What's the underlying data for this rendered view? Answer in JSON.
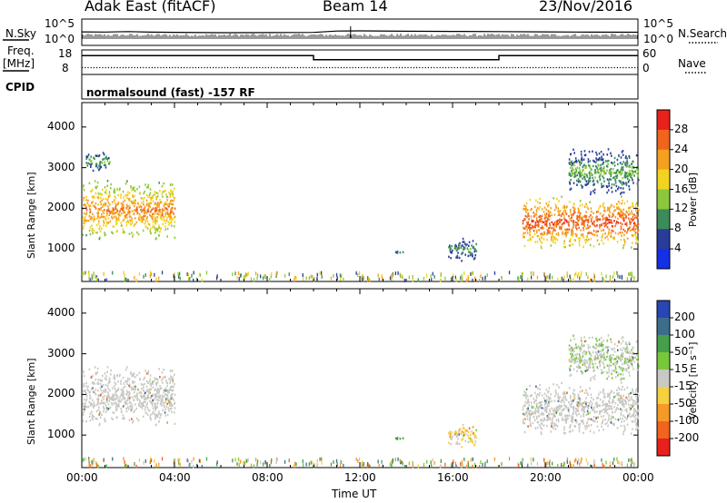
{
  "header": {
    "site": "Adak East (fitACF)",
    "beam": "Beam 14",
    "date": "23/Nov/2016"
  },
  "left_labels": {
    "nsky": "N.Sky",
    "freq": "Freq.",
    "mhz": "[MHz]",
    "cpid": "CPID"
  },
  "right_labels": {
    "nsearch": "N.Search",
    "nave": "Nave"
  },
  "strip_ticks": {
    "noise_left_top": "10^5",
    "noise_left_bottom": "10^0",
    "noise_right_top": "10^5",
    "noise_right_bottom": "10^0",
    "freq_top": "18",
    "freq_bottom": "8",
    "nave_top": "60",
    "nave_bottom": "0"
  },
  "cpid_text": "normalsound (fast) -157 RF",
  "power_colorbar": {
    "label": "Power [dB]",
    "ticks": [
      "28",
      "24",
      "20",
      "16",
      "12",
      "8",
      "4"
    ],
    "colors": [
      "#e8211c",
      "#f0641e",
      "#f5a020",
      "#f2d31f",
      "#8cc83c",
      "#3c8c5a",
      "#2a3c9a",
      "#1430e6"
    ]
  },
  "velocity_colorbar": {
    "label": "Velocity [m s⁻¹]",
    "ticks": [
      "200",
      "100",
      "50",
      "15",
      "-15",
      "-50",
      "-100",
      "-200"
    ],
    "colors": [
      "#2846b4",
      "#3c6e8c",
      "#46a04a",
      "#78c83c",
      "#c8c8c4",
      "#f5d040",
      "#f59a28",
      "#f0641e",
      "#e8211c"
    ]
  },
  "chart_data": [
    {
      "type": "heatmap",
      "panel": "power",
      "ylabel": "Slant Range [km]",
      "ylim": [
        200,
        4600
      ],
      "y_ticks": [
        "4000",
        "3000",
        "2000",
        "1000"
      ],
      "y_tick_values": [
        4000,
        3000,
        2000,
        1000
      ],
      "xlim": [
        0,
        24
      ],
      "echo_regions": [
        {
          "t_start": 0.0,
          "t_end": 4.0,
          "range_low": 1200,
          "range_high": 2700,
          "peak_power_db": 24
        },
        {
          "t_start": 0.1,
          "t_end": 1.2,
          "range_low": 2900,
          "range_high": 3400,
          "peak_power_db": 12
        },
        {
          "t_start": 13.5,
          "t_end": 14.0,
          "range_low": 850,
          "range_high": 950,
          "peak_power_db": 10
        },
        {
          "t_start": 15.8,
          "t_end": 17.0,
          "range_low": 700,
          "range_high": 1300,
          "peak_power_db": 10
        },
        {
          "t_start": 19.0,
          "t_end": 24.0,
          "range_low": 1000,
          "range_high": 2300,
          "peak_power_db": 28
        },
        {
          "t_start": 21.0,
          "t_end": 24.0,
          "range_low": 2300,
          "range_high": 3500,
          "peak_power_db": 12
        }
      ]
    },
    {
      "type": "heatmap",
      "panel": "velocity",
      "ylabel": "Slant Range [km]",
      "ylim": [
        200,
        4600
      ],
      "y_ticks": [
        "4000",
        "3000",
        "2000",
        "1000"
      ],
      "y_tick_values": [
        4000,
        3000,
        2000,
        1000
      ],
      "xlim": [
        0,
        24
      ],
      "x_ticks": [
        "00:00",
        "04:00",
        "08:00",
        "12:00",
        "16:00",
        "20:00",
        "00:00"
      ],
      "x_tick_values": [
        0,
        4,
        8,
        12,
        16,
        20,
        24
      ],
      "xlabel": "Time UT",
      "echo_regions": [
        {
          "t_start": 0.0,
          "t_end": 4.0,
          "range_low": 1200,
          "range_high": 2700,
          "velocity": 0
        },
        {
          "t_start": 13.5,
          "t_end": 14.0,
          "range_low": 850,
          "range_high": 950,
          "velocity": 60
        },
        {
          "t_start": 15.8,
          "t_end": 17.0,
          "range_low": 700,
          "range_high": 1300,
          "velocity": -20
        },
        {
          "t_start": 19.0,
          "t_end": 24.0,
          "range_low": 1000,
          "range_high": 2300,
          "velocity": 0
        },
        {
          "t_start": 21.0,
          "t_end": 24.0,
          "range_low": 2300,
          "range_high": 3500,
          "velocity": 10
        }
      ]
    },
    {
      "type": "line",
      "panel": "frequency",
      "xlim": [
        0,
        24
      ],
      "ylim": [
        8,
        18
      ],
      "x": [
        0,
        10,
        10,
        18,
        18,
        24
      ],
      "y": [
        16.5,
        16.5,
        14.5,
        14.5,
        16.5,
        16.5
      ]
    },
    {
      "type": "line",
      "panel": "noise",
      "xlim": [
        0,
        24
      ],
      "y_scale": "log",
      "ylim": [
        1,
        100000
      ],
      "x": [
        0,
        1,
        2,
        3,
        4,
        6,
        8,
        10,
        11,
        12,
        14,
        16,
        18,
        20,
        22,
        24
      ],
      "y": [
        300,
        280,
        350,
        260,
        240,
        200,
        210,
        230,
        450,
        500,
        420,
        380,
        340,
        300,
        270,
        250
      ]
    }
  ]
}
